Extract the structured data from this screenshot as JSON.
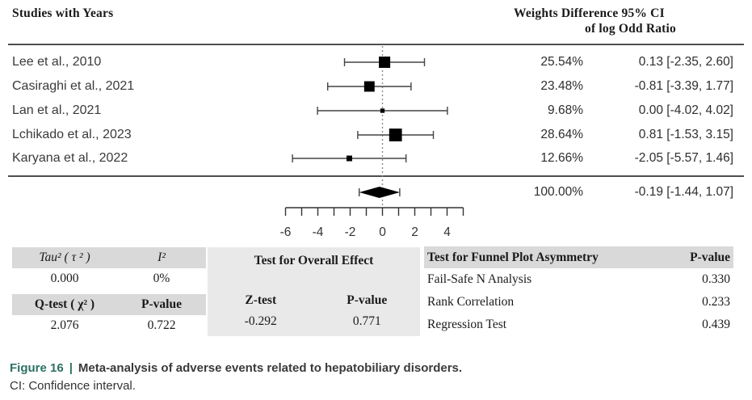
{
  "header": {
    "studies_col": "Studies with Years",
    "right_col_line1": "Weights Difference 95% CI",
    "right_col_line2": "of log Odd Ratio"
  },
  "chart_data": {
    "type": "forest",
    "title": "Meta-analysis of adverse events related to hepatobiliary disorders",
    "effect_measure": "Difference of log Odd Ratio",
    "x_axis": {
      "range": [
        -6,
        5
      ],
      "ticks": [
        -6,
        -5,
        -4,
        -3,
        -2,
        -1,
        0,
        1,
        2,
        3,
        4,
        5
      ],
      "labeled_ticks": [
        -6,
        -4,
        -2,
        0,
        2,
        4
      ],
      "zero_reference_line": 0
    },
    "studies": [
      {
        "label": "Lee et  al., 2010",
        "weight": "25.54%",
        "weight_value": 25.54,
        "estimate": 0.13,
        "ci_low": -2.35,
        "ci_high": 2.6,
        "difference": "0.13 [-2.35, 2.60]"
      },
      {
        "label": "Casiraghi et al., 2021",
        "weight": "23.48%",
        "weight_value": 23.48,
        "estimate": -0.81,
        "ci_low": -3.39,
        "ci_high": 1.77,
        "difference": "-0.81 [-3.39, 1.77]"
      },
      {
        "label": "Lan et al., 2021",
        "weight": "9.68%",
        "weight_value": 9.68,
        "estimate": 0.0,
        "ci_low": -4.02,
        "ci_high": 4.02,
        "difference": "0.00 [-4.02, 4.02]"
      },
      {
        "label": "Lchikado et al., 2023",
        "weight": "28.64%",
        "weight_value": 28.64,
        "estimate": 0.81,
        "ci_low": -1.53,
        "ci_high": 3.15,
        "difference": "0.81 [-1.53, 3.15]"
      },
      {
        "label": "Karyana et al., 2022",
        "weight": "12.66%",
        "weight_value": 12.66,
        "estimate": -2.05,
        "ci_low": -5.57,
        "ci_high": 1.46,
        "difference": "-2.05 [-5.57, 1.46]"
      }
    ],
    "overall": {
      "weight": "100.00%",
      "weight_value": 100.0,
      "estimate": -0.19,
      "ci_low": -1.44,
      "ci_high": 1.07,
      "difference": "-0.19 [-1.44, 1.07]"
    }
  },
  "stats": {
    "heterogeneity": {
      "tau2_label": "Tau² ( τ ² )",
      "i2_label": "I²",
      "tau2_value": "0.000",
      "i2_value": "0%",
      "qtest_label": "Q-test ( χ² )",
      "qtest_pvalue_label": "P-value",
      "qtest_value": "2.076",
      "qtest_pvalue": "0.722"
    },
    "overall_effect": {
      "title": "Test for Overall Effect",
      "ztest_label": "Z-test",
      "pvalue_label": "P-value",
      "ztest_value": "-0.292",
      "pvalue_value": "0.771"
    },
    "funnel": {
      "title": "Test for Funnel Plot Asymmetry",
      "pvalue_header": "P-value",
      "rows": [
        {
          "label": "Fail-Safe N Analysis",
          "value": "0.330"
        },
        {
          "label": "Rank Correlation",
          "value": "0.233"
        },
        {
          "label": "Regression Test",
          "value": "0.439"
        }
      ]
    }
  },
  "caption": {
    "figure_label": "Figure 16",
    "separator": "|",
    "title": "Meta-analysis of adverse events related to hepatobiliary disorders.",
    "note": "CI: Confidence interval."
  }
}
